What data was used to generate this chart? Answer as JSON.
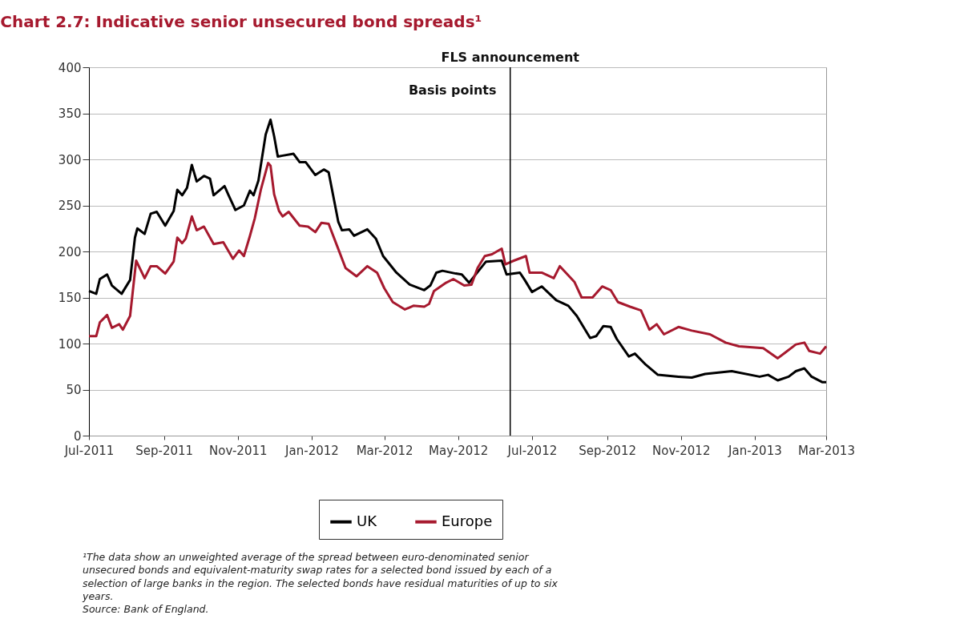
{
  "chart_data": {
    "type": "line",
    "title": "Chart 2.7: Indicative senior unsecured bond spreads¹",
    "ylabel": "Basis points",
    "xlim": [
      "2011-07-01",
      "2013-03-01"
    ],
    "xticks": [
      {
        "value": "2011-07",
        "label": "Jul-2011"
      },
      {
        "value": "2011-09",
        "label": "Sep-2011"
      },
      {
        "value": "2011-11",
        "label": "Nov-2011"
      },
      {
        "value": "2012-01",
        "label": "Jan-2012"
      },
      {
        "value": "2012-03",
        "label": "Mar-2012"
      },
      {
        "value": "2012-05",
        "label": "May-2012"
      },
      {
        "value": "2012-07",
        "label": "Jul-2012"
      },
      {
        "value": "2012-09",
        "label": "Sep-2012"
      },
      {
        "value": "2012-11",
        "label": "Nov-2012"
      },
      {
        "value": "2013-01",
        "label": "Jan-2013"
      },
      {
        "value": "2013-03",
        "label": "Mar-2013"
      }
    ],
    "ylim": [
      0,
      400
    ],
    "yticks": [
      0,
      50,
      100,
      150,
      200,
      250,
      300,
      350,
      400
    ],
    "grid": "y",
    "legend": "bottom",
    "marker": "none",
    "line_style": "solid",
    "ref_lines": [
      {
        "axis": "x",
        "value": "2012-06-13",
        "label": "FLS announcement",
        "color": "#000000"
      }
    ],
    "series": [
      {
        "name": "UK",
        "color": "#000000",
        "x": [
          "2011-07-01",
          "2011-07-07",
          "2011-07-10",
          "2011-07-16",
          "2011-07-20",
          "2011-07-28",
          "2011-08-04",
          "2011-08-08",
          "2011-08-10",
          "2011-08-16",
          "2011-08-21",
          "2011-08-26",
          "2011-09-02",
          "2011-09-09",
          "2011-09-12",
          "2011-09-16",
          "2011-09-20",
          "2011-09-24",
          "2011-09-28",
          "2011-10-04",
          "2011-10-09",
          "2011-10-12",
          "2011-10-21",
          "2011-10-24",
          "2011-10-30",
          "2011-11-06",
          "2011-11-11",
          "2011-11-14",
          "2011-11-18",
          "2011-11-24",
          "2011-11-28",
          "2011-12-01",
          "2011-12-04",
          "2011-12-08",
          "2011-12-17",
          "2011-12-22",
          "2011-12-27",
          "2012-01-04",
          "2012-01-11",
          "2012-01-15",
          "2012-01-23",
          "2012-01-26",
          "2012-02-01",
          "2012-02-05",
          "2012-02-16",
          "2012-02-23",
          "2012-02-29",
          "2012-03-11",
          "2012-03-22",
          "2012-04-03",
          "2012-04-08",
          "2012-04-13",
          "2012-04-18",
          "2012-04-29",
          "2012-05-04",
          "2012-05-10",
          "2012-05-24",
          "2012-06-06",
          "2012-06-10",
          "2012-06-21",
          "2012-06-25",
          "2012-07-01",
          "2012-07-09",
          "2012-07-21",
          "2012-07-31",
          "2012-08-07",
          "2012-08-18",
          "2012-08-23",
          "2012-08-29",
          "2012-09-04",
          "2012-09-09",
          "2012-09-19",
          "2012-09-24",
          "2012-10-03",
          "2012-10-13",
          "2012-10-30",
          "2012-11-10",
          "2012-11-21",
          "2012-12-13",
          "2013-01-05",
          "2013-01-12",
          "2013-01-20",
          "2013-01-29",
          "2013-02-04",
          "2013-02-11",
          "2013-02-17",
          "2013-02-26",
          "2013-03-01"
        ],
        "values": [
          157,
          154,
          170,
          175,
          163,
          154,
          169,
          215,
          225,
          219,
          241,
          243,
          228,
          244,
          267,
          261,
          269,
          294,
          276,
          282,
          279,
          261,
          271,
          262,
          245,
          250,
          266,
          261,
          277,
          327,
          343,
          325,
          303,
          304,
          306,
          297,
          297,
          283,
          289,
          286,
          232,
          223,
          224,
          217,
          224,
          214,
          195,
          177,
          164,
          158,
          163,
          177,
          179,
          176,
          175,
          166,
          189,
          190,
          175,
          177,
          169,
          156,
          162,
          147,
          141,
          130,
          106,
          108,
          119,
          118,
          105,
          86,
          89,
          77,
          66,
          64,
          63,
          67,
          70,
          64,
          66,
          60,
          64,
          70,
          73,
          64,
          58,
          58
        ]
      },
      {
        "name": "Europe",
        "color": "#a6192e",
        "x": [
          "2011-07-01",
          "2011-07-07",
          "2011-07-10",
          "2011-07-16",
          "2011-07-20",
          "2011-07-26",
          "2011-07-29",
          "2011-08-04",
          "2011-08-09",
          "2011-08-16",
          "2011-08-21",
          "2011-08-26",
          "2011-09-02",
          "2011-09-09",
          "2011-09-12",
          "2011-09-16",
          "2011-09-19",
          "2011-09-24",
          "2011-09-28",
          "2011-10-04",
          "2011-10-12",
          "2011-10-20",
          "2011-10-28",
          "2011-11-02",
          "2011-11-06",
          "2011-11-11",
          "2011-11-15",
          "2011-11-20",
          "2011-11-26",
          "2011-11-28",
          "2011-12-01",
          "2011-12-05",
          "2011-12-08",
          "2011-12-13",
          "2011-12-22",
          "2011-12-29",
          "2012-01-04",
          "2012-01-09",
          "2012-01-15",
          "2012-01-22",
          "2012-01-29",
          "2012-02-07",
          "2012-02-16",
          "2012-02-24",
          "2012-03-01",
          "2012-03-08",
          "2012-03-18",
          "2012-03-25",
          "2012-04-03",
          "2012-04-07",
          "2012-04-11",
          "2012-04-21",
          "2012-04-27",
          "2012-05-06",
          "2012-05-12",
          "2012-05-17",
          "2012-05-23",
          "2012-05-29",
          "2012-06-06",
          "2012-06-09",
          "2012-06-16",
          "2012-06-26",
          "2012-06-29",
          "2012-07-09",
          "2012-07-19",
          "2012-07-24",
          "2012-08-05",
          "2012-08-11",
          "2012-08-20",
          "2012-08-28",
          "2012-09-04",
          "2012-09-10",
          "2012-09-20",
          "2012-09-29",
          "2012-10-06",
          "2012-10-12",
          "2012-10-18",
          "2012-10-30",
          "2012-11-10",
          "2012-11-25",
          "2012-12-08",
          "2012-12-19",
          "2013-01-08",
          "2013-01-20",
          "2013-01-26",
          "2013-02-04",
          "2013-02-11",
          "2013-02-15",
          "2013-02-24",
          "2013-03-01"
        ],
        "values": [
          108,
          108,
          123,
          131,
          117,
          121,
          115,
          130,
          190,
          171,
          184,
          184,
          176,
          189,
          215,
          209,
          214,
          238,
          223,
          227,
          208,
          210,
          192,
          201,
          195,
          217,
          236,
          267,
          296,
          293,
          262,
          244,
          238,
          243,
          228,
          227,
          221,
          231,
          230,
          206,
          182,
          173,
          184,
          177,
          160,
          145,
          137,
          141,
          140,
          143,
          157,
          166,
          170,
          163,
          164,
          182,
          195,
          197,
          203,
          186,
          190,
          195,
          177,
          177,
          171,
          184,
          167,
          150,
          150,
          162,
          158,
          145,
          140,
          136,
          115,
          121,
          110,
          118,
          114,
          110,
          101,
          97,
          95,
          84,
          90,
          99,
          101,
          92,
          89,
          97
        ]
      }
    ],
    "annotations": [
      "¹The data show an unweighted average of the spread between euro-denominated senior unsecured bonds and equivalent-maturity swap rates for a selected bond issued by each of a selection of large banks in the region. The selected bonds have residual maturities of up to six years.",
      "Source: Bank of England."
    ]
  }
}
